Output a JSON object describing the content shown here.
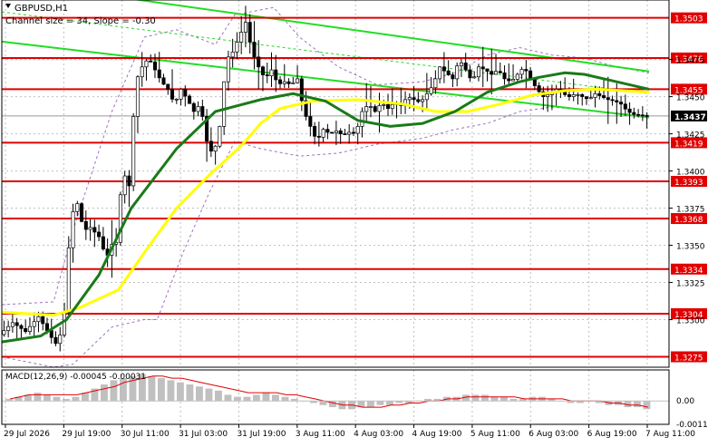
{
  "header": {
    "symbol_label": "GBPUSD,H1",
    "channel_label": "Channel size = 34, Slope = -0.30"
  },
  "macd_label": "MACD(12,26,9) -0.00045 -0.00031",
  "colors": {
    "background": "#ffffff",
    "grid": "#c0c0c0",
    "candles": "#000000",
    "level_lines": "#e00000",
    "channel": "#22dd22",
    "ma_fast": "#1a7a1a",
    "ma_slow": "#ffff00",
    "bollinger": "#a070c0",
    "macd_hist": "#c0c0c0",
    "macd_signal": "#e00000",
    "price_box": "#000000"
  },
  "chart_data": [
    {
      "type": "candlestick",
      "symbol": "GBPUSD",
      "timeframe": "H1",
      "ylim": [
        1.3268,
        1.3515
      ],
      "x_ticks": [
        "29 Jul 2026",
        "29 Jul 19:00",
        "30 Jul 11:00",
        "31 Jul 03:00",
        "31 Jul 19:00",
        "3 Aug 11:00",
        "4 Aug 03:00",
        "4 Aug 19:00",
        "5 Aug 11:00",
        "6 Aug 03:00",
        "6 Aug 19:00",
        "7 Aug 11:00"
      ],
      "y_ticks": [
        "1.3475",
        "1.3450",
        "1.3425",
        "1.3400",
        "1.3375",
        "1.3350",
        "1.3325",
        "1.3300"
      ],
      "levels": [
        {
          "label": "1.3503",
          "value": 1.3503
        },
        {
          "label": "1.3476",
          "value": 1.3476
        },
        {
          "label": "1.3455",
          "value": 1.3455
        },
        {
          "label": "1.3419",
          "value": 1.3419
        },
        {
          "label": "1.3393",
          "value": 1.3393
        },
        {
          "label": "1.3368",
          "value": 1.3368
        },
        {
          "label": "1.3334",
          "value": 1.3334
        },
        {
          "label": "1.3304",
          "value": 1.3304
        },
        {
          "label": "1.3275",
          "value": 1.3275
        }
      ],
      "current_price": {
        "label": "1.3437",
        "value": 1.3437
      },
      "channel": {
        "upper": [
          [
            0,
            1.3528
          ],
          [
            1,
            1.3467
          ]
        ],
        "lower": [
          [
            0,
            1.3487
          ],
          [
            1,
            1.3436
          ]
        ],
        "mid": [
          [
            0,
            1.3507
          ],
          [
            1,
            1.3452
          ]
        ]
      },
      "ma_fast": [
        [
          0,
          1.3285
        ],
        [
          0.06,
          1.3289
        ],
        [
          0.1,
          1.33
        ],
        [
          0.15,
          1.333
        ],
        [
          0.2,
          1.3375
        ],
        [
          0.27,
          1.3415
        ],
        [
          0.33,
          1.344
        ],
        [
          0.4,
          1.3448
        ],
        [
          0.45,
          1.3452
        ],
        [
          0.5,
          1.3447
        ],
        [
          0.55,
          1.3434
        ],
        [
          0.6,
          1.343
        ],
        [
          0.65,
          1.3432
        ],
        [
          0.7,
          1.344
        ],
        [
          0.75,
          1.3453
        ],
        [
          0.8,
          1.346
        ],
        [
          0.83,
          1.3463
        ],
        [
          0.87,
          1.3466
        ],
        [
          0.9,
          1.3465
        ],
        [
          0.95,
          1.346
        ],
        [
          1,
          1.3455
        ]
      ],
      "ma_slow": [
        [
          0,
          1.3305
        ],
        [
          0.08,
          1.3303
        ],
        [
          0.12,
          1.3308
        ],
        [
          0.18,
          1.332
        ],
        [
          0.22,
          1.3345
        ],
        [
          0.27,
          1.3375
        ],
        [
          0.32,
          1.3397
        ],
        [
          0.37,
          1.3417
        ],
        [
          0.4,
          1.3432
        ],
        [
          0.43,
          1.3442
        ],
        [
          0.48,
          1.3447
        ],
        [
          0.55,
          1.3448
        ],
        [
          0.62,
          1.3445
        ],
        [
          0.67,
          1.344
        ],
        [
          0.72,
          1.344
        ],
        [
          0.77,
          1.3445
        ],
        [
          0.82,
          1.3451
        ],
        [
          0.87,
          1.3454
        ],
        [
          0.92,
          1.3455
        ],
        [
          1,
          1.3453
        ]
      ],
      "bollinger_upper": [
        [
          0,
          1.331
        ],
        [
          0.08,
          1.3312
        ],
        [
          0.11,
          1.336
        ],
        [
          0.17,
          1.344
        ],
        [
          0.22,
          1.349
        ],
        [
          0.27,
          1.3495
        ],
        [
          0.33,
          1.3485
        ],
        [
          0.36,
          1.3505
        ],
        [
          0.42,
          1.351
        ],
        [
          0.46,
          1.349
        ],
        [
          0.52,
          1.347
        ],
        [
          0.58,
          1.3458
        ],
        [
          0.65,
          1.346
        ],
        [
          0.7,
          1.3466
        ],
        [
          0.75,
          1.3478
        ],
        [
          0.8,
          1.3483
        ],
        [
          0.85,
          1.3478
        ],
        [
          0.9,
          1.3476
        ],
        [
          0.95,
          1.347
        ],
        [
          1,
          1.3466
        ]
      ],
      "bollinger_lower": [
        [
          0,
          1.3275
        ],
        [
          0.08,
          1.3268
        ],
        [
          0.11,
          1.327
        ],
        [
          0.17,
          1.3295
        ],
        [
          0.22,
          1.33
        ],
        [
          0.24,
          1.33
        ],
        [
          0.28,
          1.3345
        ],
        [
          0.32,
          1.3385
        ],
        [
          0.36,
          1.342
        ],
        [
          0.4,
          1.3415
        ],
        [
          0.46,
          1.341
        ],
        [
          0.52,
          1.3412
        ],
        [
          0.58,
          1.3418
        ],
        [
          0.65,
          1.3422
        ],
        [
          0.7,
          1.3428
        ],
        [
          0.75,
          1.3432
        ],
        [
          0.8,
          1.344
        ],
        [
          0.85,
          1.3443
        ],
        [
          0.9,
          1.3441
        ],
        [
          0.95,
          1.3439
        ],
        [
          1,
          1.3437
        ]
      ],
      "price_path": [
        [
          0,
          1.329
        ],
        [
          0.02,
          1.3298
        ],
        [
          0.04,
          1.3292
        ],
        [
          0.06,
          1.3302
        ],
        [
          0.08,
          1.3288
        ],
        [
          0.09,
          1.3282
        ],
        [
          0.1,
          1.3305
        ],
        [
          0.11,
          1.337
        ],
        [
          0.12,
          1.3378
        ],
        [
          0.13,
          1.336
        ],
        [
          0.14,
          1.3362
        ],
        [
          0.155,
          1.3355
        ],
        [
          0.165,
          1.334
        ],
        [
          0.17,
          1.335
        ],
        [
          0.18,
          1.3352
        ],
        [
          0.19,
          1.34
        ],
        [
          0.2,
          1.339
        ],
        [
          0.21,
          1.346
        ],
        [
          0.22,
          1.347
        ],
        [
          0.23,
          1.3476
        ],
        [
          0.24,
          1.3468
        ],
        [
          0.25,
          1.346
        ],
        [
          0.26,
          1.3455
        ],
        [
          0.27,
          1.3445
        ],
        [
          0.28,
          1.3455
        ],
        [
          0.29,
          1.3448
        ],
        [
          0.3,
          1.344
        ],
        [
          0.31,
          1.3445
        ],
        [
          0.32,
          1.342
        ],
        [
          0.33,
          1.341
        ],
        [
          0.34,
          1.343
        ],
        [
          0.35,
          1.3475
        ],
        [
          0.36,
          1.348
        ],
        [
          0.37,
          1.349
        ],
        [
          0.38,
          1.35
        ],
        [
          0.39,
          1.348
        ],
        [
          0.4,
          1.347
        ],
        [
          0.41,
          1.3462
        ],
        [
          0.42,
          1.3468
        ],
        [
          0.43,
          1.3458
        ],
        [
          0.44,
          1.346
        ],
        [
          0.45,
          1.3458
        ],
        [
          0.46,
          1.3462
        ],
        [
          0.47,
          1.344
        ],
        [
          0.48,
          1.343
        ],
        [
          0.49,
          1.342
        ],
        [
          0.5,
          1.3428
        ],
        [
          0.51,
          1.3425
        ],
        [
          0.52,
          1.3427
        ],
        [
          0.53,
          1.3424
        ],
        [
          0.54,
          1.3426
        ],
        [
          0.55,
          1.3425
        ],
        [
          0.56,
          1.344
        ],
        [
          0.57,
          1.3445
        ],
        [
          0.58,
          1.344
        ],
        [
          0.59,
          1.3446
        ],
        [
          0.6,
          1.3442
        ],
        [
          0.61,
          1.3446
        ],
        [
          0.62,
          1.3444
        ],
        [
          0.63,
          1.345
        ],
        [
          0.64,
          1.3448
        ],
        [
          0.65,
          1.3446
        ],
        [
          0.66,
          1.3452
        ],
        [
          0.67,
          1.3458
        ],
        [
          0.68,
          1.347
        ],
        [
          0.69,
          1.3466
        ],
        [
          0.7,
          1.3462
        ],
        [
          0.71,
          1.3475
        ],
        [
          0.72,
          1.3468
        ],
        [
          0.73,
          1.346
        ],
        [
          0.74,
          1.347
        ],
        [
          0.75,
          1.3468
        ],
        [
          0.76,
          1.3465
        ],
        [
          0.77,
          1.3468
        ],
        [
          0.78,
          1.3462
        ],
        [
          0.79,
          1.346
        ],
        [
          0.8,
          1.3465
        ],
        [
          0.81,
          1.347
        ],
        [
          0.82,
          1.3462
        ],
        [
          0.83,
          1.3455
        ],
        [
          0.84,
          1.345
        ],
        [
          0.85,
          1.3452
        ],
        [
          0.86,
          1.3455
        ],
        [
          0.87,
          1.3452
        ],
        [
          0.88,
          1.345
        ],
        [
          0.89,
          1.3452
        ],
        [
          0.9,
          1.345
        ],
        [
          0.91,
          1.3448
        ],
        [
          0.92,
          1.3452
        ],
        [
          0.93,
          1.345
        ],
        [
          0.94,
          1.3448
        ],
        [
          0.95,
          1.3447
        ],
        [
          0.96,
          1.3445
        ],
        [
          0.97,
          1.344
        ],
        [
          0.98,
          1.3438
        ],
        [
          1,
          1.3437
        ]
      ]
    },
    {
      "type": "bar",
      "name": "MACD(12,26,9)",
      "macd": -0.00045,
      "signal": -0.00031,
      "ylim": [
        -0.00113,
        0.0015
      ],
      "y_ticks": [
        "0.00",
        "-0.00113"
      ],
      "histogram": [
        0.0001,
        0.0002,
        0.0003,
        0.0004,
        0.0003,
        0.0002,
        0.0001,
        0.0002,
        0.0004,
        0.0006,
        0.0008,
        0.001,
        0.0011,
        0.0012,
        0.0013,
        0.0012,
        0.0011,
        0.001,
        0.0009,
        0.0008,
        0.0007,
        0.0006,
        0.0005,
        0.0003,
        0.0002,
        0.0002,
        0.0003,
        0.0004,
        0.0003,
        0.0002,
        0.0001,
        0.0,
        -0.0001,
        -0.0002,
        -0.0003,
        -0.0004,
        -0.0004,
        -0.0003,
        -0.0003,
        -0.0002,
        -0.0002,
        -0.0001,
        -0.0001,
        0.0,
        0.0001,
        0.0001,
        0.0002,
        0.0002,
        0.0003,
        0.0003,
        0.0003,
        0.0002,
        0.0002,
        0.0001,
        0.0001,
        0.0002,
        0.0002,
        0.0001,
        0.0,
        -0.0001,
        -0.0001,
        0.0,
        -0.0001,
        -0.0002,
        -0.0002,
        -0.0003,
        -0.0003,
        -0.0004
      ],
      "signal_line": [
        0.0001,
        0.0002,
        0.0003,
        0.0003,
        0.0003,
        0.0003,
        0.0003,
        0.0003,
        0.0004,
        0.0005,
        0.0006,
        0.0007,
        0.0009,
        0.001,
        0.0011,
        0.0012,
        0.0012,
        0.0011,
        0.0011,
        0.001,
        0.0009,
        0.0008,
        0.0007,
        0.0006,
        0.0005,
        0.0004,
        0.0004,
        0.0004,
        0.0004,
        0.0003,
        0.0003,
        0.0002,
        0.0001,
        0.0,
        -0.0001,
        -0.0002,
        -0.0002,
        -0.0003,
        -0.0003,
        -0.0003,
        -0.0002,
        -0.0002,
        -0.0001,
        -0.0001,
        0.0,
        0.0,
        0.0001,
        0.0001,
        0.0002,
        0.0002,
        0.0002,
        0.0002,
        0.0002,
        0.0002,
        0.0001,
        0.0001,
        0.0001,
        0.0001,
        0.0001,
        0.0,
        0.0,
        0.0,
        0.0,
        -0.0001,
        -0.0001,
        -0.0002,
        -0.0002,
        -0.0003
      ]
    }
  ]
}
